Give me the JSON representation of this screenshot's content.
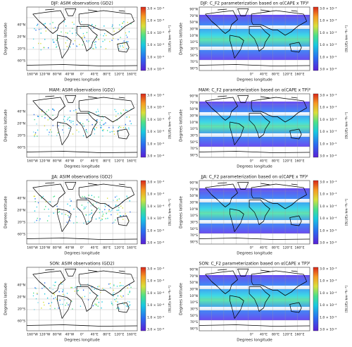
{
  "rows": [
    {
      "left_title": "DJF: ASIM observations (GD2)",
      "right_title": "DJF: C_F2 parameterization based on α(CAPE x TP)ᵝ"
    },
    {
      "left_title": "MAM: ASIM observations (GD2)",
      "right_title": "MAM: C_F2 parameterization based on α(CAPE x TP)ᵝ"
    },
    {
      "left_title": "JJA: ASIM observations (GD2)",
      "right_title": "JJA: C_F2 parameterization based on α(CAPE x TP)ᵝ"
    },
    {
      "left_title": "SON: ASIM observations (GD2)",
      "right_title": "SON: C_F2 parameterization based on α(CAPE x TP)ᵝ"
    }
  ],
  "y_label": "Degrees latitude",
  "x_label": "Degrees longitude",
  "colorbar_label": "[BLUEs km⁻²h⁻¹]",
  "left_y_ticks": [
    "40°N",
    "20°N",
    "20°S",
    "60°S"
  ],
  "left_x_ticks": [
    "160°W",
    "120°W",
    "80°W",
    "40°W",
    "0°",
    "40°E",
    "80°E",
    "120°E",
    "160°E"
  ],
  "right_y_ticks": [
    "90°N",
    "70°N",
    "50°N",
    "30°N",
    "10°N",
    "10°S",
    "30°S",
    "50°S",
    "70°S",
    "90°S"
  ],
  "right_x_ticks": [
    "0°",
    "40°E",
    "80°E",
    "120°E",
    "160°E"
  ],
  "colorbar_ticks": [
    "3.0 × 10⁻³",
    "1.0 × 10⁻³",
    "1.0 × 10⁻⁴",
    "1.0 × 10⁻⁴",
    "1.0 × 10⁻⁵",
    "3.0 × 10⁻⁶"
  ]
}
